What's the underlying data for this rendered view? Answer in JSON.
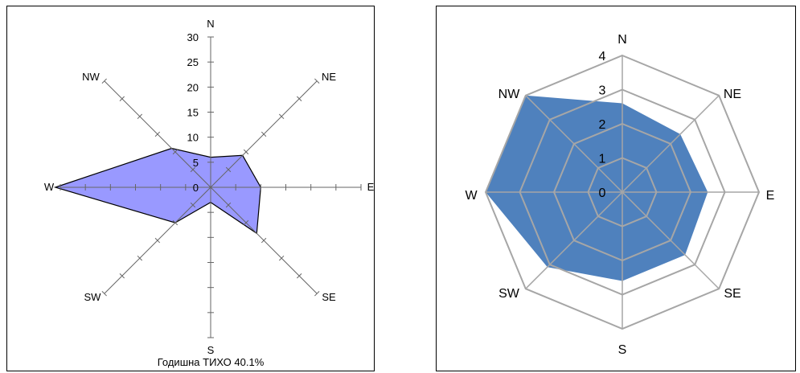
{
  "chart_data": [
    {
      "type": "radar",
      "style": "wind-rose-axes",
      "directions": [
        "N",
        "NE",
        "E",
        "SE",
        "S",
        "SW",
        "W",
        "NW"
      ],
      "values": [
        6,
        9,
        10,
        13,
        3,
        10,
        31,
        11
      ],
      "radial_ticks": [
        0,
        5,
        10,
        15,
        20,
        25,
        30
      ],
      "rmax": 30,
      "caption": "Годишна ТИХО 40.1%",
      "fill_color": "#9999ff",
      "line_color": "#000000"
    },
    {
      "type": "radar",
      "style": "octagon-grid",
      "directions": [
        "N",
        "NE",
        "E",
        "SE",
        "S",
        "SW",
        "W",
        "NW"
      ],
      "values": [
        2.6,
        2.4,
        2.5,
        2.6,
        2.6,
        3.1,
        4,
        4
      ],
      "radial_ticks": [
        0,
        1,
        2,
        3,
        4
      ],
      "rmax": 4,
      "fill_color": "#4f81bd",
      "grid_color": "#a6a6a6"
    }
  ]
}
